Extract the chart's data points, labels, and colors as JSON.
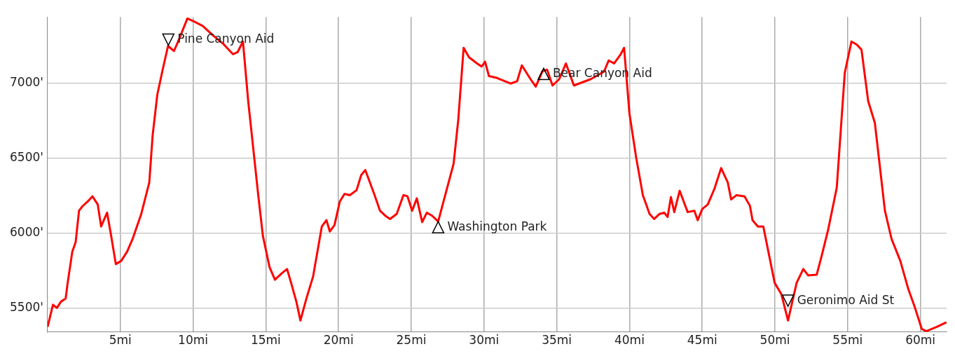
{
  "chart_data": {
    "type": "line",
    "x": [
      0,
      0.37,
      0.64,
      0.92,
      1.24,
      1.38,
      1.7,
      1.93,
      2.16,
      2.39,
      2.76,
      3.08,
      3.45,
      3.68,
      4.09,
      4.37,
      4.69,
      5.06,
      5.47,
      5.84,
      6.44,
      6.99,
      7.22,
      7.54,
      7.91,
      8.28,
      8.69,
      9.06,
      9.61,
      9.98,
      10.67,
      11.36,
      12.05,
      12.74,
      13.06,
      13.43,
      13.79,
      14.25,
      14.48,
      14.8,
      15.26,
      15.63,
      16.09,
      16.46,
      16.74,
      17.1,
      17.38,
      17.79,
      18.25,
      18.85,
      19.17,
      19.4,
      19.72,
      20.09,
      20.41,
      20.78,
      21.24,
      21.56,
      21.84,
      22.16,
      22.48,
      22.85,
      23.22,
      23.54,
      24,
      24.46,
      24.74,
      25.06,
      25.38,
      25.75,
      26.07,
      26.44,
      26.85,
      27.45,
      27.91,
      28.23,
      28.6,
      28.97,
      29.52,
      29.84,
      30.07,
      30.34,
      30.9,
      31.82,
      32.28,
      32.6,
      33.2,
      33.56,
      34.02,
      34.34,
      34.71,
      35.17,
      35.63,
      36.18,
      37.33,
      38.25,
      38.57,
      38.94,
      39.4,
      39.63,
      40,
      40.46,
      40.92,
      41.38,
      41.7,
      42.07,
      42.39,
      42.62,
      42.85,
      43.08,
      43.45,
      44,
      44.46,
      44.69,
      45.01,
      45.38,
      45.84,
      46.3,
      46.76,
      46.99,
      47.36,
      47.91,
      48.28,
      48.46,
      48.83,
      49.2,
      49.98,
      50.44,
      50.9,
      51.49,
      51.95,
      52.28,
      52.87,
      53.2,
      53.66,
      54.25,
      54.8,
      55.26,
      55.63,
      55.95,
      56.41,
      56.87,
      57.56,
      58.02,
      58.62,
      59.17,
      59.63,
      60.09,
      60.41,
      61.13,
      61.79
    ],
    "series": [
      {
        "color": "#ff0000",
        "values": [
          5374,
          5521,
          5500,
          5542,
          5562,
          5667,
          5876,
          5939,
          6148,
          6177,
          6210,
          6244,
          6189,
          6043,
          6135,
          5980,
          5792,
          5813,
          5876,
          5959,
          6127,
          6336,
          6649,
          6921,
          7088,
          7247,
          7213,
          7297,
          7430,
          7414,
          7380,
          7318,
          7263,
          7192,
          7205,
          7276,
          6879,
          6461,
          6252,
          5980,
          5771,
          5688,
          5730,
          5759,
          5667,
          5542,
          5416,
          5562,
          5709,
          6043,
          6085,
          6010,
          6051,
          6210,
          6260,
          6252,
          6285,
          6386,
          6419,
          6336,
          6252,
          6148,
          6114,
          6093,
          6127,
          6252,
          6244,
          6148,
          6231,
          6072,
          6135,
          6114,
          6076,
          6294,
          6461,
          6753,
          7234,
          7171,
          7130,
          7109,
          7142,
          7046,
          7033,
          6996,
          7012,
          7117,
          7025,
          6975,
          7079,
          7088,
          6983,
          7025,
          7130,
          6983,
          7025,
          7075,
          7150,
          7130,
          7192,
          7234,
          6795,
          6503,
          6252,
          6127,
          6093,
          6127,
          6135,
          6106,
          6239,
          6139,
          6281,
          6139,
          6148,
          6085,
          6160,
          6189,
          6294,
          6432,
          6336,
          6223,
          6252,
          6244,
          6181,
          6085,
          6043,
          6043,
          5667,
          5592,
          5416,
          5667,
          5759,
          5717,
          5721,
          5842,
          6022,
          6302,
          7067,
          7276,
          7255,
          7222,
          6879,
          6733,
          6148,
          5959,
          5813,
          5625,
          5500,
          5360,
          5345,
          5374,
          5404
        ]
      }
    ],
    "xlim": [
      0,
      61.8
    ],
    "ylim": [
      5340,
      7440
    ],
    "xticks": [
      {
        "value": 5,
        "label": "5mi"
      },
      {
        "value": 10,
        "label": "10mi"
      },
      {
        "value": 15,
        "label": "15mi"
      },
      {
        "value": 20,
        "label": "20mi"
      },
      {
        "value": 25,
        "label": "25mi"
      },
      {
        "value": 30,
        "label": "30mi"
      },
      {
        "value": 35,
        "label": "35mi"
      },
      {
        "value": 40,
        "label": "40mi"
      },
      {
        "value": 45,
        "label": "45mi"
      },
      {
        "value": 50,
        "label": "50mi"
      },
      {
        "value": 55,
        "label": "55mi"
      },
      {
        "value": 60,
        "label": "60mi"
      }
    ],
    "yticks": [
      {
        "value": 5500,
        "label": "5500'"
      },
      {
        "value": 6000,
        "label": "6000'"
      },
      {
        "value": 6500,
        "label": "6500'"
      },
      {
        "value": 7000,
        "label": "7000'"
      }
    ],
    "grid": true,
    "marker": "none",
    "line_style": "solid",
    "annotations": [
      {
        "text": "Pine Canyon Aid",
        "x": 8.3,
        "y": 7289
      },
      {
        "text": "Washington Park",
        "x": 26.85,
        "y": 6038
      },
      {
        "text": "Bear Canyon Aid",
        "x": 34.1,
        "y": 7060
      },
      {
        "text": "Geronimo Aid St",
        "x": 50.9,
        "y": 5548
      }
    ]
  }
}
